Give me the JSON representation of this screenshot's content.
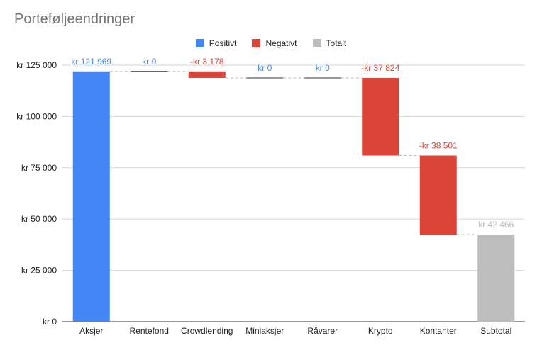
{
  "title": "Porteføljeendringer",
  "legend": [
    {
      "label": "Positivt",
      "color": "#4285f4"
    },
    {
      "label": "Negativt",
      "color": "#db4437"
    },
    {
      "label": "Totalt",
      "color": "#bdbdbd"
    }
  ],
  "chart_data": {
    "type": "bar",
    "subtype": "waterfall",
    "title": "Porteføljeendringer",
    "categories": [
      "Aksjer",
      "Rentefond",
      "Crowdlending",
      "Miniaksjer",
      "Råvarer",
      "Krypto",
      "Kontanter",
      "Subtotal"
    ],
    "values": [
      121969,
      0,
      -3178,
      0,
      0,
      -37824,
      -38501,
      42466
    ],
    "value_labels": [
      "kr  121 969",
      "kr  0",
      "-kr  3 178",
      "kr  0",
      "kr  0",
      "-kr  37 824",
      "-kr  38 501",
      "kr  42 466"
    ],
    "kinds": [
      "positive",
      "positive",
      "negative",
      "positive",
      "positive",
      "negative",
      "negative",
      "total"
    ],
    "ylim": [
      0,
      125000
    ],
    "y_ticks": [
      0,
      25000,
      50000,
      75000,
      100000,
      125000
    ],
    "y_tick_labels": [
      "kr   0",
      "kr  25 000",
      "kr  50 000",
      "kr  75 000",
      "kr  100 000",
      "kr  125 000"
    ],
    "colors": {
      "positive": "#4285f4",
      "negative": "#db4437",
      "total": "#bdbdbd"
    },
    "grid": true,
    "legend_position": "top"
  }
}
